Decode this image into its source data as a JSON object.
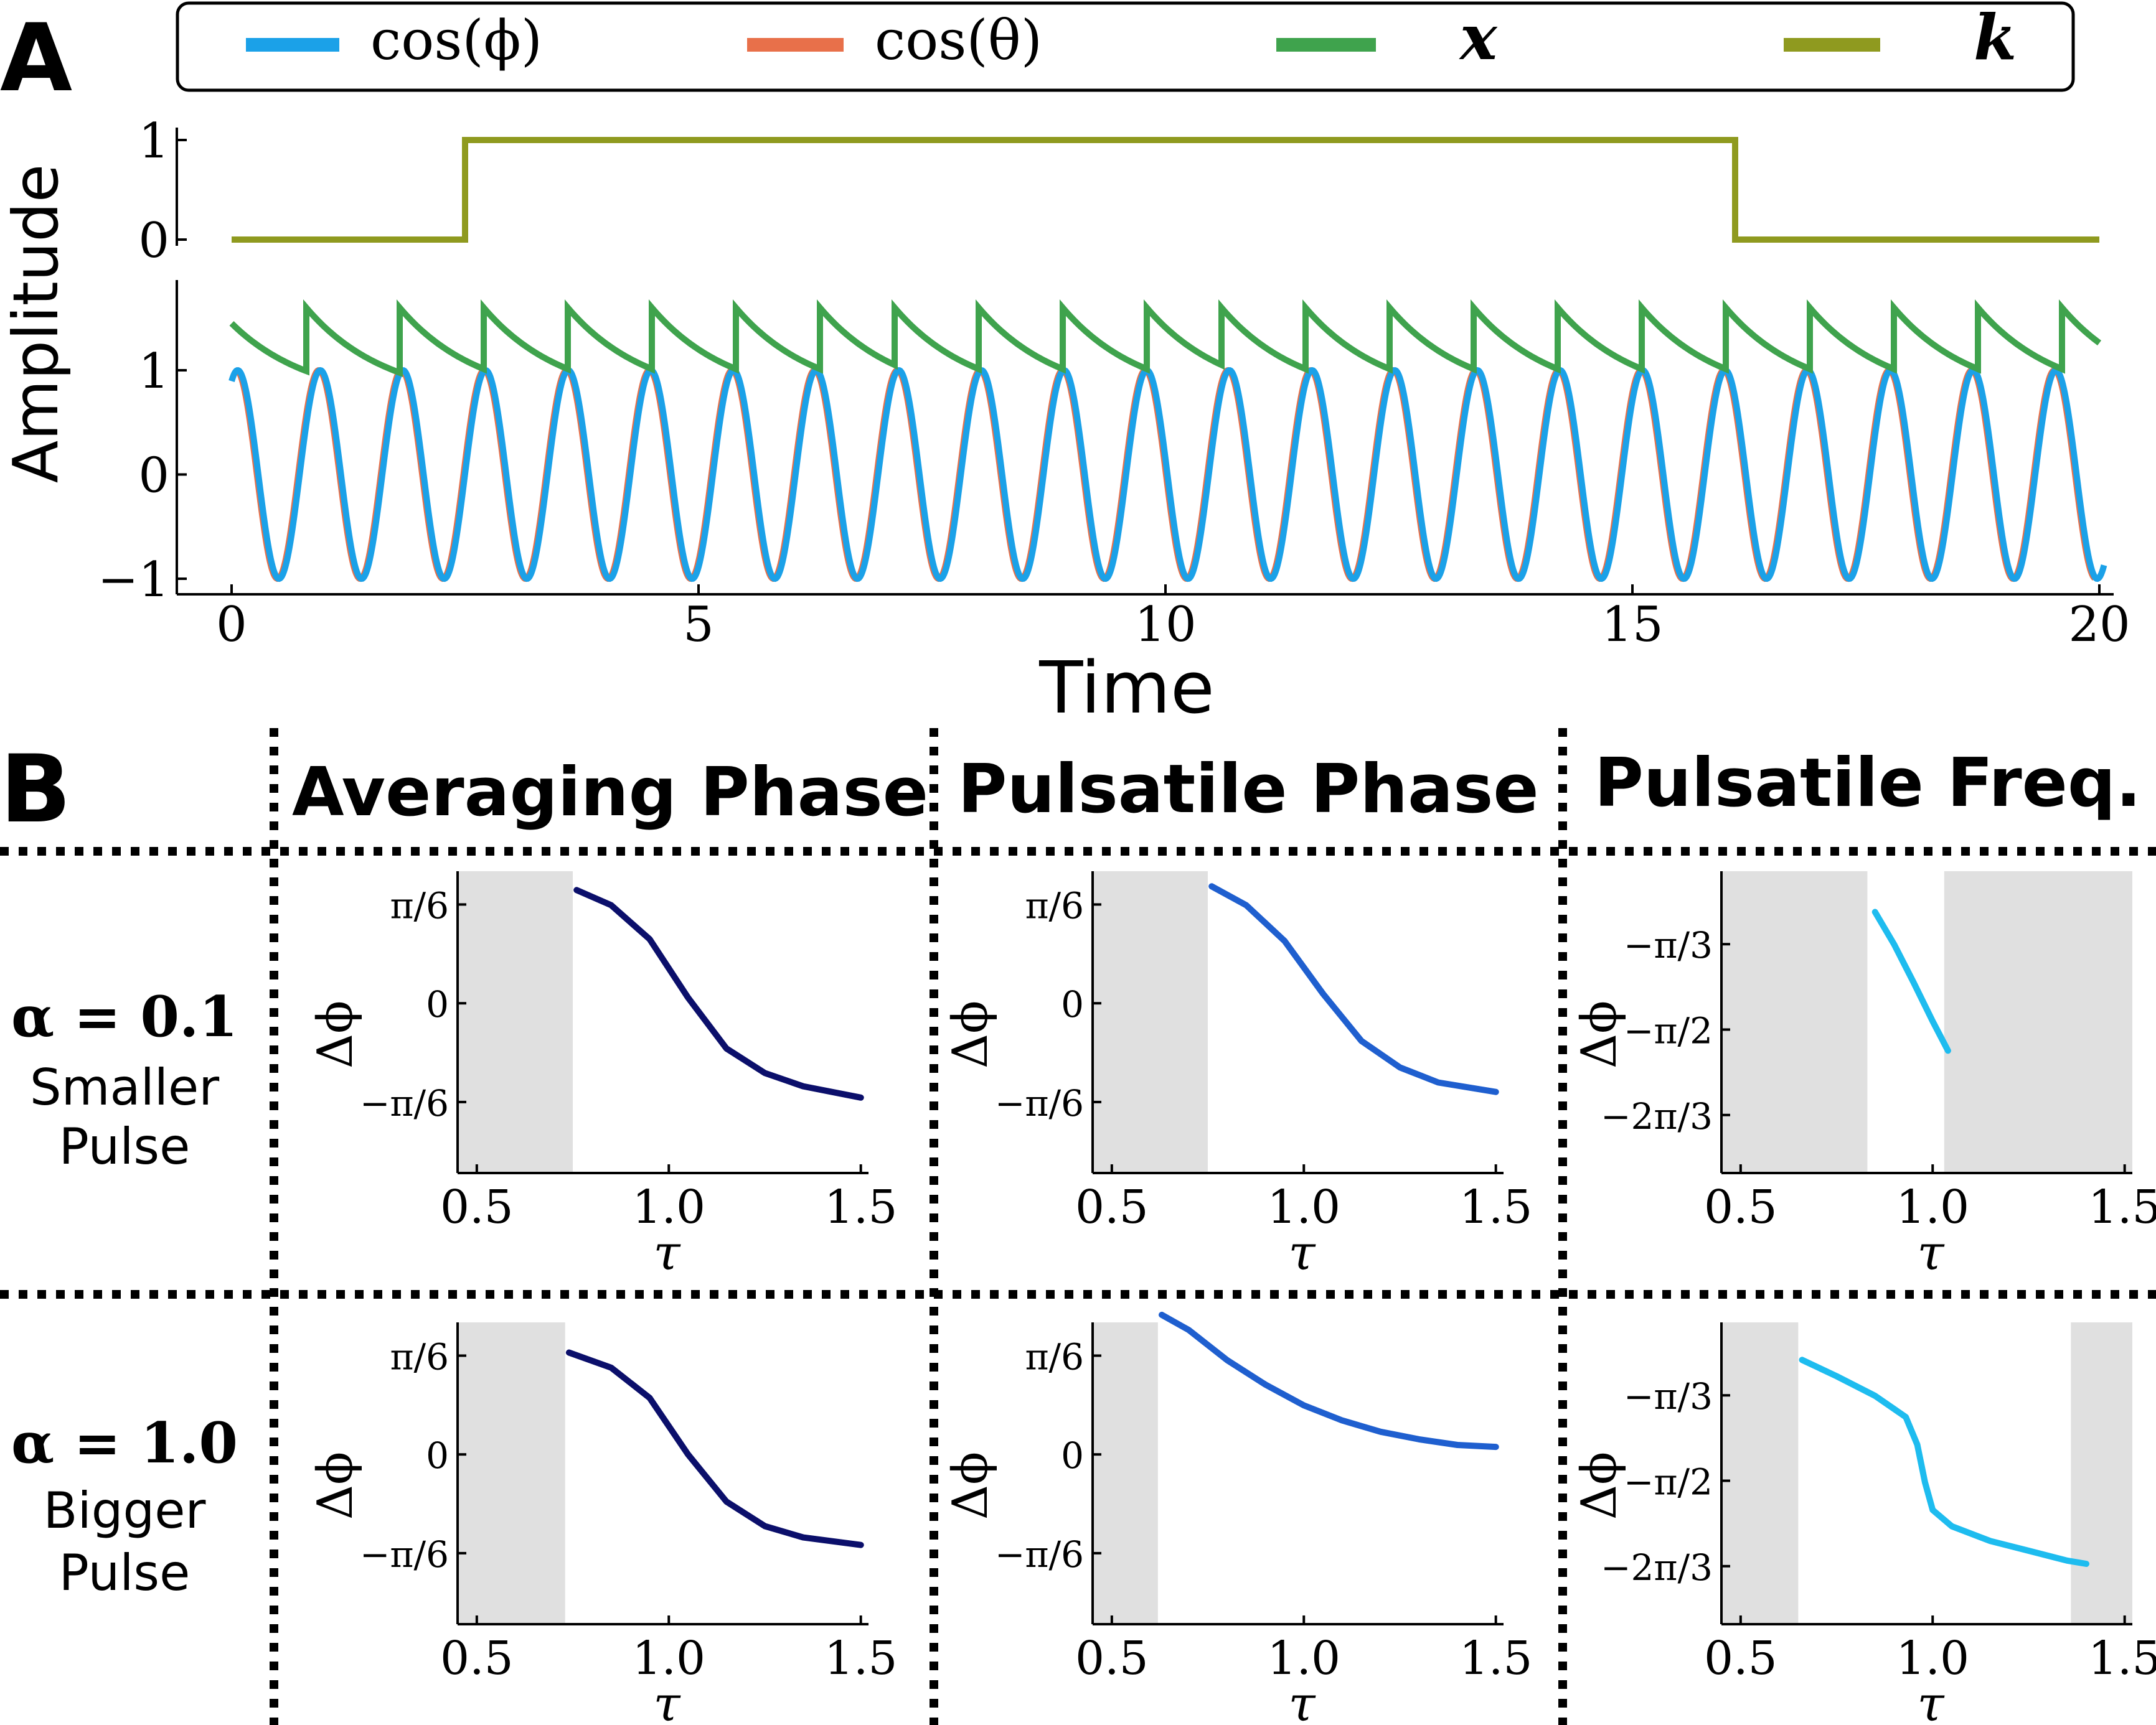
{
  "panel_a": {
    "label": "A",
    "ylabel": "Amplitude",
    "xlabel": "Time",
    "legend": [
      {
        "symbol": "cos(ϕ)",
        "color": "#1ba1e8"
      },
      {
        "symbol": "cos(θ)",
        "color": "#e8704a"
      },
      {
        "symbol": "x",
        "color": "#3fa34d"
      },
      {
        "symbol": "k",
        "color": "#8f9a1f"
      }
    ]
  },
  "panel_b": {
    "label": "B",
    "col_headers": [
      "Averaging Phase",
      "Pulsatile Phase",
      "Pulsatile Freq."
    ],
    "row_labels": [
      {
        "alpha": "α = 0.1",
        "desc": [
          "Smaller",
          "Pulse"
        ]
      },
      {
        "alpha": "α = 1.0",
        "desc": [
          "Bigger",
          "Pulse"
        ]
      }
    ],
    "ylabel": "Δϕ",
    "xlabel": "τ",
    "phase_ticks": [
      "π/6",
      "0",
      "−π/6"
    ],
    "freq_ticks": [
      "−π/3",
      "−π/2",
      "−2π/3"
    ]
  },
  "chart_data": [
    {
      "type": "line",
      "x_ticks": [
        "0",
        "5",
        "10",
        "15",
        "20"
      ],
      "xlim": [
        0,
        20
      ],
      "subplots": [
        {
          "name": "k",
          "y_ticks": [
            "0",
            "1"
          ],
          "ylim": [
            0,
            1
          ],
          "series": [
            {
              "name": "k",
              "color": "#8f9a1f",
              "x": [
                0,
                2.5,
                2.5,
                16.1,
                16.1,
                20
              ],
              "y": [
                0,
                0,
                1,
                1,
                0,
                0
              ]
            }
          ]
        },
        {
          "name": "oscillators",
          "y_ticks": [
            "−1",
            "0",
            "1"
          ],
          "ylim": [
            -1,
            1
          ],
          "series": [
            {
              "name": "cos(ϕ)",
              "color": "#1ba1e8",
              "x_start": 0,
              "x_end": 20.05,
              "period": 0.885,
              "peak_at": 0.95
            },
            {
              "name": "cos(θ)",
              "color": "#e8704a",
              "x_start": 0.05,
              "x_end": 19.95,
              "period": 0.885,
              "peak_at": 0.05
            },
            {
              "name": "x",
              "color": "#3fa34d",
              "pulse_times": [
                0.8,
                1.8,
                2.7,
                3.6,
                4.5,
                5.4,
                6.3,
                7.1,
                8.0,
                8.9,
                9.8,
                10.6,
                11.5,
                12.4,
                13.3,
                14.2,
                15.1,
                16.0,
                16.9,
                17.8,
                18.7,
                19.6
              ],
              "start_value": 1.45,
              "low": 0.7,
              "high": 1.6
            }
          ]
        }
      ]
    },
    {
      "type": "line",
      "title": "Averaging Phase",
      "row": "α = 0.1",
      "xlim": [
        0.5,
        1.5
      ],
      "x_ticks": [
        "0.5",
        "1.0",
        "1.5"
      ],
      "ylim": [
        -0.9,
        0.7
      ],
      "shaded": [
        [
          0.45,
          0.75
        ]
      ],
      "series": [
        {
          "color": "#0b0f6b",
          "x": [
            0.76,
            0.85,
            0.95,
            1.05,
            1.15,
            1.25,
            1.35,
            1.5
          ],
          "y": [
            0.6,
            0.52,
            0.34,
            0.03,
            -0.24,
            -0.37,
            -0.44,
            -0.5
          ]
        }
      ]
    },
    {
      "type": "line",
      "title": "Pulsatile Phase",
      "row": "α = 0.1",
      "xlim": [
        0.5,
        1.5
      ],
      "x_ticks": [
        "0.5",
        "1.0",
        "1.5"
      ],
      "ylim": [
        -0.9,
        0.7
      ],
      "shaded": [
        [
          0.45,
          0.75
        ]
      ],
      "series": [
        {
          "color": "#1f5fcf",
          "x": [
            0.76,
            0.85,
            0.95,
            1.05,
            1.15,
            1.25,
            1.35,
            1.5
          ],
          "y": [
            0.62,
            0.52,
            0.33,
            0.05,
            -0.2,
            -0.34,
            -0.42,
            -0.47
          ]
        }
      ]
    },
    {
      "type": "line",
      "title": "Pulsatile Freq.",
      "row": "α = 0.1",
      "xlim": [
        0.5,
        1.5
      ],
      "x_ticks": [
        "0.5",
        "1.0",
        "1.5"
      ],
      "ylim": [
        -2.45,
        -0.6
      ],
      "shaded": [
        [
          0.45,
          0.83
        ],
        [
          1.03,
          1.52
        ]
      ],
      "series": [
        {
          "color": "#1ebcef",
          "x": [
            0.85,
            0.9,
            0.95,
            1.0,
            1.04
          ],
          "y": [
            -0.85,
            -1.05,
            -1.28,
            -1.52,
            -1.7
          ]
        }
      ]
    },
    {
      "type": "line",
      "title": "Averaging Phase",
      "row": "α = 1.0",
      "xlim": [
        0.5,
        1.5
      ],
      "x_ticks": [
        "0.5",
        "1.0",
        "1.5"
      ],
      "ylim": [
        -0.9,
        0.7
      ],
      "shaded": [
        [
          0.45,
          0.73
        ]
      ],
      "series": [
        {
          "color": "#0b0f6b",
          "x": [
            0.74,
            0.85,
            0.95,
            1.05,
            1.15,
            1.25,
            1.35,
            1.5
          ],
          "y": [
            0.54,
            0.46,
            0.3,
            0.0,
            -0.25,
            -0.38,
            -0.44,
            -0.48
          ]
        }
      ]
    },
    {
      "type": "line",
      "title": "Pulsatile Phase",
      "row": "α = 1.0",
      "xlim": [
        0.5,
        1.5
      ],
      "x_ticks": [
        "0.5",
        "1.0",
        "1.5"
      ],
      "ylim": [
        -0.9,
        0.7
      ],
      "shaded": [
        [
          0.45,
          0.62
        ]
      ],
      "series": [
        {
          "color": "#1f5fcf",
          "x": [
            0.63,
            0.7,
            0.8,
            0.9,
            1.0,
            1.1,
            1.2,
            1.3,
            1.4,
            1.5
          ],
          "y": [
            0.74,
            0.66,
            0.5,
            0.37,
            0.26,
            0.18,
            0.12,
            0.08,
            0.05,
            0.04
          ]
        }
      ]
    },
    {
      "type": "line",
      "title": "Pulsatile Freq.",
      "row": "α = 1.0",
      "xlim": [
        0.5,
        1.5
      ],
      "x_ticks": [
        "0.5",
        "1.0",
        "1.5"
      ],
      "ylim": [
        -2.45,
        -0.6
      ],
      "shaded": [
        [
          0.45,
          0.65
        ],
        [
          1.36,
          1.52
        ]
      ],
      "series": [
        {
          "color": "#1ebcef",
          "x": [
            0.66,
            0.75,
            0.85,
            0.93,
            0.96,
            0.98,
            1.0,
            1.05,
            1.15,
            1.25,
            1.35,
            1.4
          ],
          "y": [
            -0.83,
            -0.93,
            -1.05,
            -1.18,
            -1.35,
            -1.58,
            -1.75,
            -1.85,
            -1.94,
            -2.0,
            -2.06,
            -2.08
          ]
        }
      ]
    }
  ]
}
